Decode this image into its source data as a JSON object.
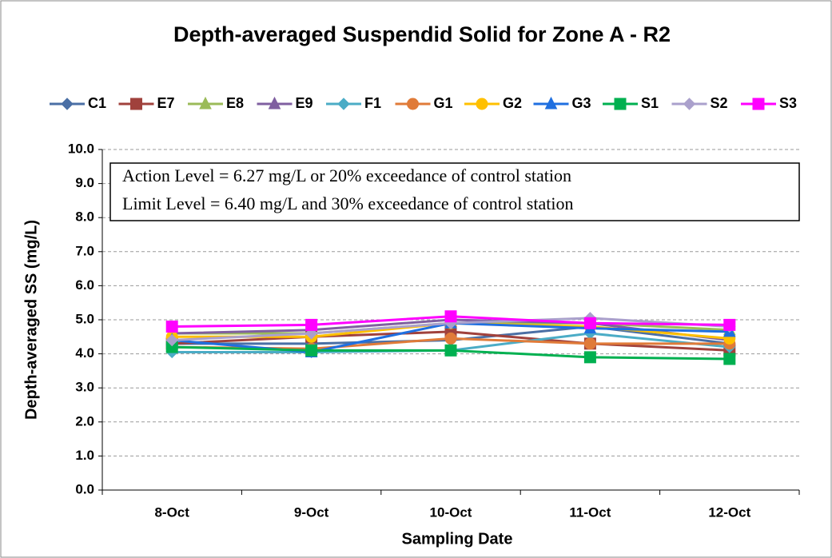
{
  "chart_data": {
    "type": "line",
    "title": "Depth-averaged  Suspendid Solid for Zone A - R2",
    "x_label": "Sampling Date",
    "y_label": "Depth-averaged SS (mg/L)",
    "annotations": [
      "Action Level = 6.27 mg/L or 20% exceedance of control station",
      "Limit Level = 6.40 mg/L and 30% exceedance of control station"
    ],
    "categories": [
      "8-Oct",
      "9-Oct",
      "10-Oct",
      "11-Oct",
      "12-Oct"
    ],
    "ylim": [
      0,
      10
    ],
    "yticks": [
      {
        "value": 0,
        "label": "0.0"
      },
      {
        "value": 1,
        "label": "1.0"
      },
      {
        "value": 2,
        "label": "2.0"
      },
      {
        "value": 3,
        "label": "3.0"
      },
      {
        "value": 4,
        "label": "4.0"
      },
      {
        "value": 5,
        "label": "5.0"
      },
      {
        "value": 6,
        "label": "6.0"
      },
      {
        "value": 7,
        "label": "7.0"
      },
      {
        "value": 8,
        "label": "8.0"
      },
      {
        "value": 9,
        "label": "9.0"
      },
      {
        "value": 10,
        "label": "10.0"
      }
    ],
    "grid": true,
    "legend": "top",
    "series": [
      {
        "name": "C1",
        "color": "#4a6fa5",
        "marker": "diamond",
        "values": [
          4.3,
          4.3,
          4.4,
          4.8,
          4.3
        ]
      },
      {
        "name": "E7",
        "color": "#a0413c",
        "marker": "square",
        "values": [
          4.3,
          4.5,
          4.65,
          4.3,
          4.1
        ]
      },
      {
        "name": "E8",
        "color": "#9bbb59",
        "marker": "triangle",
        "values": [
          4.6,
          4.6,
          4.9,
          4.9,
          4.7
        ]
      },
      {
        "name": "E9",
        "color": "#7f5fa0",
        "marker": "triangle",
        "values": [
          4.6,
          4.7,
          5.0,
          4.9,
          4.4
        ]
      },
      {
        "name": "F1",
        "color": "#4bacc6",
        "marker": "diamond",
        "values": [
          4.05,
          4.05,
          4.1,
          4.6,
          4.2
        ]
      },
      {
        "name": "G1",
        "color": "#e07b39",
        "marker": "circle",
        "values": [
          4.2,
          4.15,
          4.45,
          4.3,
          4.3
        ]
      },
      {
        "name": "G2",
        "color": "#ffc000",
        "marker": "circle",
        "values": [
          4.5,
          4.5,
          4.9,
          4.8,
          4.45
        ]
      },
      {
        "name": "G3",
        "color": "#1f6fe0",
        "marker": "triangle",
        "values": [
          4.4,
          4.05,
          4.9,
          4.75,
          4.65
        ]
      },
      {
        "name": "S1",
        "color": "#00b050",
        "marker": "square",
        "values": [
          4.2,
          4.1,
          4.1,
          3.9,
          3.85
        ]
      },
      {
        "name": "S2",
        "color": "#aaa0cc",
        "marker": "diamond",
        "values": [
          4.4,
          4.6,
          4.9,
          5.05,
          4.8
        ]
      },
      {
        "name": "S3",
        "color": "#ff00ff",
        "marker": "square",
        "values": [
          4.8,
          4.85,
          5.1,
          4.9,
          4.85
        ]
      }
    ]
  }
}
